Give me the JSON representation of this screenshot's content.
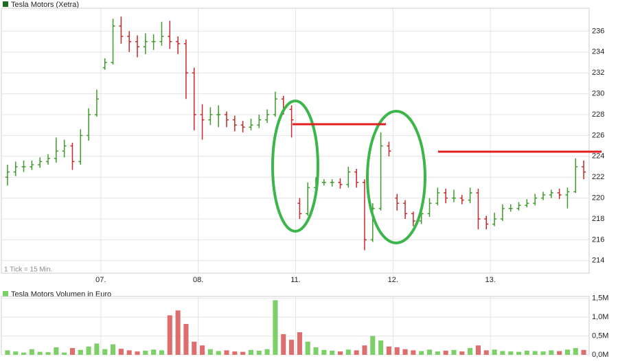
{
  "chart_data": [
    {
      "type": "ohlc",
      "title": "Tesla Motors (Xetra)",
      "note": "1 Tick = 15 Min.",
      "up_color": "#3e9a2a",
      "down_color": "#c8282a",
      "legend_color": "#1f6b1f",
      "xlim": [
        0,
        72
      ],
      "xticks": [
        {
          "value": 12,
          "label": "07."
        },
        {
          "value": 24,
          "label": "08."
        },
        {
          "value": 36,
          "label": "11."
        },
        {
          "value": 48,
          "label": "12."
        },
        {
          "value": 60,
          "label": "13."
        }
      ],
      "ylim": [
        212.8,
        238.2
      ],
      "yticks": [
        214,
        216,
        218,
        220,
        222,
        224,
        226,
        228,
        230,
        232,
        234,
        236
      ],
      "open": [
        222.0,
        222.5,
        223.0,
        223.0,
        223.2,
        223.5,
        223.8,
        224.5,
        225.0,
        223.5,
        226.0,
        228.0,
        232.5,
        233.0,
        236.5,
        235.5,
        235.0,
        234.5,
        235.0,
        235.0,
        235.5,
        235.0,
        234.8,
        232.0,
        228.0,
        227.5,
        228.0,
        228.0,
        227.5,
        227.0,
        226.8,
        227.0,
        227.5,
        228.0,
        229.5,
        228.5,
        219.5,
        218.5,
        221.0,
        221.5,
        221.5,
        221.5,
        221.3,
        222.5,
        221.5,
        216.0,
        219.0,
        225.0,
        220.0,
        219.5,
        218.5,
        217.8,
        218.5,
        219.5,
        220.5,
        220.0,
        220.0,
        219.8,
        220.5,
        218.0,
        217.5,
        218.0,
        219.0,
        219.0,
        219.3,
        219.5,
        220.0,
        220.3,
        220.5,
        220.3,
        220.6,
        223.0
      ],
      "high": [
        223.2,
        223.5,
        223.6,
        223.6,
        223.9,
        224.2,
        225.8,
        225.6,
        225.3,
        226.6,
        228.6,
        230.4,
        233.4,
        237.2,
        237.4,
        236.0,
        235.6,
        235.8,
        235.7,
        236.9,
        237.0,
        235.5,
        235.2,
        232.5,
        229.0,
        228.7,
        228.9,
        228.3,
        227.9,
        227.4,
        227.6,
        228.0,
        228.5,
        230.2,
        229.8,
        228.9,
        220.0,
        221.5,
        222.0,
        221.8,
        221.8,
        221.9,
        223.0,
        222.8,
        221.8,
        219.5,
        226.3,
        225.4,
        220.4,
        219.8,
        218.7,
        218.9,
        220.0,
        221.0,
        220.9,
        220.8,
        220.3,
        221.0,
        220.9,
        218.3,
        218.6,
        219.4,
        219.4,
        219.6,
        219.9,
        220.4,
        220.6,
        220.8,
        220.9,
        221.0,
        223.8,
        223.6
      ],
      "low": [
        221.2,
        222.1,
        222.5,
        222.7,
        222.9,
        223.2,
        223.4,
        223.9,
        222.7,
        223.2,
        225.5,
        227.8,
        232.3,
        232.8,
        234.8,
        234.0,
        233.5,
        233.8,
        234.2,
        234.6,
        234.3,
        233.8,
        229.5,
        226.5,
        225.6,
        227.0,
        226.8,
        226.8,
        226.4,
        226.3,
        226.5,
        226.7,
        227.2,
        227.8,
        228.0,
        225.8,
        218.0,
        218.3,
        220.8,
        221.2,
        221.1,
        220.9,
        221.0,
        221.0,
        215.0,
        215.8,
        218.8,
        224.0,
        218.8,
        218.0,
        217.3,
        217.5,
        218.2,
        219.3,
        219.5,
        219.6,
        219.4,
        219.5,
        217.0,
        217.0,
        217.3,
        217.8,
        218.7,
        218.8,
        219.1,
        219.3,
        219.8,
        220.0,
        219.9,
        219.0,
        220.5,
        221.8
      ],
      "close": [
        222.5,
        223.0,
        223.0,
        223.2,
        223.5,
        223.8,
        224.5,
        225.0,
        223.5,
        226.0,
        228.0,
        229.5,
        233.0,
        236.5,
        235.5,
        235.0,
        234.5,
        235.0,
        235.0,
        235.5,
        235.0,
        234.8,
        232.0,
        228.0,
        227.5,
        228.0,
        228.0,
        227.5,
        227.0,
        226.8,
        227.0,
        227.5,
        228.0,
        229.5,
        228.5,
        227.5,
        218.5,
        221.0,
        221.5,
        221.5,
        221.5,
        221.3,
        222.5,
        221.5,
        216.0,
        219.0,
        225.0,
        224.5,
        219.5,
        218.5,
        217.8,
        218.5,
        219.5,
        220.5,
        220.0,
        220.0,
        219.8,
        220.5,
        218.0,
        217.5,
        218.0,
        219.0,
        219.0,
        219.3,
        219.5,
        220.0,
        220.3,
        220.5,
        220.3,
        220.6,
        223.0,
        222.5
      ]
    },
    {
      "type": "bar",
      "title": "Tesla Motors Volumen in Euro",
      "up_color": "#7dcf68",
      "down_color": "#de6e6e",
      "legend_color": "#7dcf68",
      "xlim": [
        0,
        72
      ],
      "ylim": [
        0,
        1550000
      ],
      "yticks": [
        {
          "value": 0,
          "label": "0,0M"
        },
        {
          "value": 500000,
          "label": "0,5M"
        },
        {
          "value": 1000000,
          "label": "1,0M"
        },
        {
          "value": 1500000,
          "label": "1,5M"
        }
      ],
      "values": [
        120000,
        90000,
        60000,
        150000,
        80000,
        70000,
        200000,
        60000,
        180000,
        130000,
        220000,
        300000,
        150000,
        280000,
        160000,
        120000,
        90000,
        110000,
        140000,
        120000,
        1050000,
        1180000,
        820000,
        350000,
        250000,
        150000,
        100000,
        120000,
        90000,
        80000,
        130000,
        110000,
        150000,
        1450000,
        550000,
        400000,
        600000,
        350000,
        200000,
        130000,
        110000,
        90000,
        140000,
        120000,
        250000,
        500000,
        380000,
        220000,
        200000,
        150000,
        120000,
        100000,
        140000,
        90000,
        110000,
        130000,
        90000,
        180000,
        250000,
        120000,
        140000,
        100000,
        90000,
        80000,
        110000,
        100000,
        90000,
        120000,
        100000,
        140000,
        180000,
        130000
      ]
    }
  ]
}
